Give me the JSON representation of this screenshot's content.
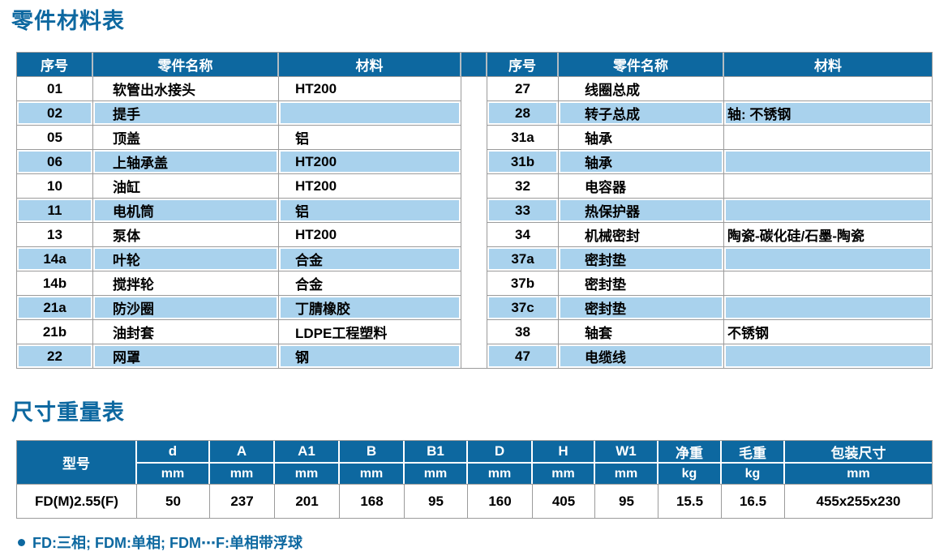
{
  "colors": {
    "accent_blue": "#0d68a0",
    "row_alt_blue": "#a9d2ed",
    "grid_gray": "#9b9b9b"
  },
  "parts_section": {
    "title": "零件材料表",
    "headers": [
      "序号",
      "零件名称",
      "材料"
    ],
    "left_rows": [
      [
        "01",
        "软管出水接头",
        "HT200"
      ],
      [
        "02",
        "提手",
        ""
      ],
      [
        "05",
        "顶盖",
        "铝"
      ],
      [
        "06",
        "上轴承盖",
        "HT200"
      ],
      [
        "10",
        "油缸",
        "HT200"
      ],
      [
        "11",
        "电机筒",
        "铝"
      ],
      [
        "13",
        "泵体",
        "HT200"
      ],
      [
        "14a",
        "叶轮",
        "合金"
      ],
      [
        "14b",
        "搅拌轮",
        "合金"
      ],
      [
        "21a",
        "防沙圈",
        "丁腈橡胶"
      ],
      [
        "21b",
        "油封套",
        "LDPE工程塑料"
      ],
      [
        "22",
        "网罩",
        "钢"
      ]
    ],
    "right_rows": [
      [
        "27",
        "线圈总成",
        ""
      ],
      [
        "28",
        "转子总成",
        "轴: 不锈钢"
      ],
      [
        "31a",
        "轴承",
        ""
      ],
      [
        "31b",
        "轴承",
        ""
      ],
      [
        "32",
        "电容器",
        ""
      ],
      [
        "33",
        "热保护器",
        ""
      ],
      [
        "34",
        "机械密封",
        "陶瓷-碳化硅/石墨-陶瓷"
      ],
      [
        "37a",
        "密封垫",
        ""
      ],
      [
        "37b",
        "密封垫",
        ""
      ],
      [
        "37c",
        "密封垫",
        ""
      ],
      [
        "38",
        "轴套",
        "不锈钢"
      ],
      [
        "47",
        "电缆线",
        ""
      ]
    ]
  },
  "dims_section": {
    "title": "尺寸重量表",
    "model_header": "型号",
    "columns": [
      {
        "label": "d",
        "unit": "mm"
      },
      {
        "label": "A",
        "unit": "mm"
      },
      {
        "label": "A1",
        "unit": "mm"
      },
      {
        "label": "B",
        "unit": "mm"
      },
      {
        "label": "B1",
        "unit": "mm"
      },
      {
        "label": "D",
        "unit": "mm"
      },
      {
        "label": "H",
        "unit": "mm"
      },
      {
        "label": "W1",
        "unit": "mm"
      },
      {
        "label": "净重",
        "unit": "kg"
      },
      {
        "label": "毛重",
        "unit": "kg"
      },
      {
        "label": "包装尺寸",
        "unit": "mm"
      }
    ],
    "row": {
      "model": "FD(M)2.55(F)",
      "values": [
        "50",
        "237",
        "201",
        "168",
        "95",
        "160",
        "405",
        "95",
        "15.5",
        "16.5",
        "455x255x230"
      ]
    },
    "footnote": "FD:三相; FDM:单相; FDM⋯F:单相带浮球"
  }
}
